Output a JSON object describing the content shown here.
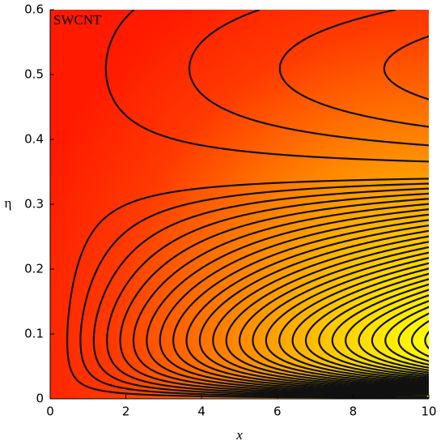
{
  "chart_data": {
    "type": "contour",
    "annotation": "SWCNT",
    "xlabel": "x",
    "ylabel": "η",
    "xlim": [
      0,
      10
    ],
    "ylim": [
      0,
      0.6
    ],
    "xticks": [
      0,
      2,
      4,
      6,
      8,
      10
    ],
    "yticks": [
      0,
      0.1,
      0.2,
      0.3,
      0.4,
      0.5,
      0.6
    ]
  }
}
